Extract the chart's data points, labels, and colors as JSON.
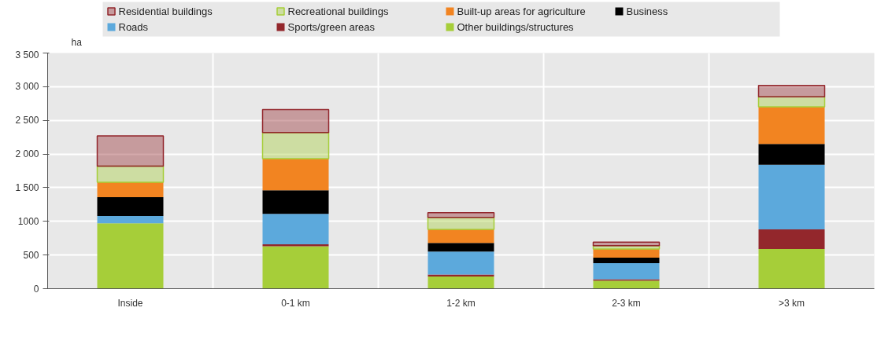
{
  "chart_data": {
    "type": "bar",
    "stacked": true,
    "ylabel": "ha",
    "categories": [
      "Inside",
      "0-1 km",
      "1-2 km",
      "2-3 km",
      ">3 km"
    ],
    "series": [
      {
        "name": "Other buildings/structures",
        "color": "#a6ce39",
        "values": [
          970,
          630,
          180,
          120,
          590
        ]
      },
      {
        "name": "Sports/green areas",
        "color": "#93272c",
        "values": [
          0,
          30,
          30,
          20,
          290
        ]
      },
      {
        "name": "Roads",
        "color": "#5ca9dc",
        "values": [
          110,
          450,
          340,
          240,
          960
        ]
      },
      {
        "name": "Business",
        "color": "#000000",
        "values": [
          280,
          350,
          130,
          80,
          310
        ]
      },
      {
        "name": "Built-up areas for agriculture",
        "color": "#f28421",
        "values": [
          220,
          470,
          200,
          130,
          550
        ]
      },
      {
        "name": "Recreational buildings",
        "color": "#a6ce39",
        "values": [
          240,
          390,
          180,
          50,
          150
        ]
      },
      {
        "name": "Residential buildings",
        "color": "#93272c",
        "values": [
          450,
          340,
          70,
          50,
          170
        ]
      }
    ],
    "ylim": [
      0,
      3500
    ],
    "yticks": [
      0,
      500,
      1000,
      {
        "value": 1500,
        "label": "1 500"
      },
      {
        "value": 2000,
        "label": "2 000"
      },
      {
        "value": 2500,
        "label": "2 500"
      },
      {
        "value": 3000,
        "label": "3 000"
      },
      {
        "value": 3500,
        "label": "3 500"
      }
    ],
    "grid": true,
    "legend": "top"
  }
}
